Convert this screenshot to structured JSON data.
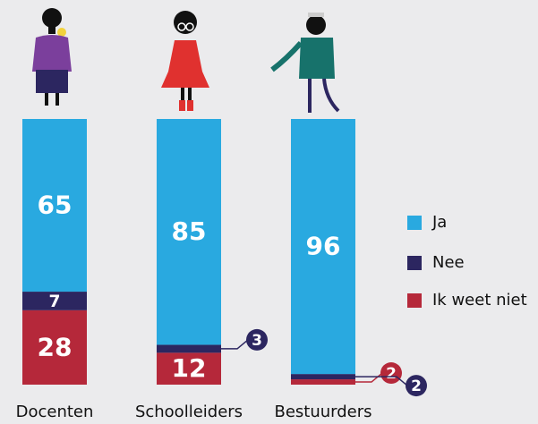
{
  "chart_data": {
    "type": "stacked-bar",
    "categories": [
      "Docenten",
      "Schoolleiders",
      "Bestuurders"
    ],
    "series": [
      {
        "name": "Ja",
        "color": "#29a9e0",
        "values": [
          65,
          85,
          96
        ]
      },
      {
        "name": "Nee",
        "color": "#2c2660",
        "values": [
          7,
          3,
          2
        ]
      },
      {
        "name": "Ik weet niet",
        "color": "#b5283a",
        "values": [
          28,
          12,
          2
        ]
      }
    ]
  }
}
